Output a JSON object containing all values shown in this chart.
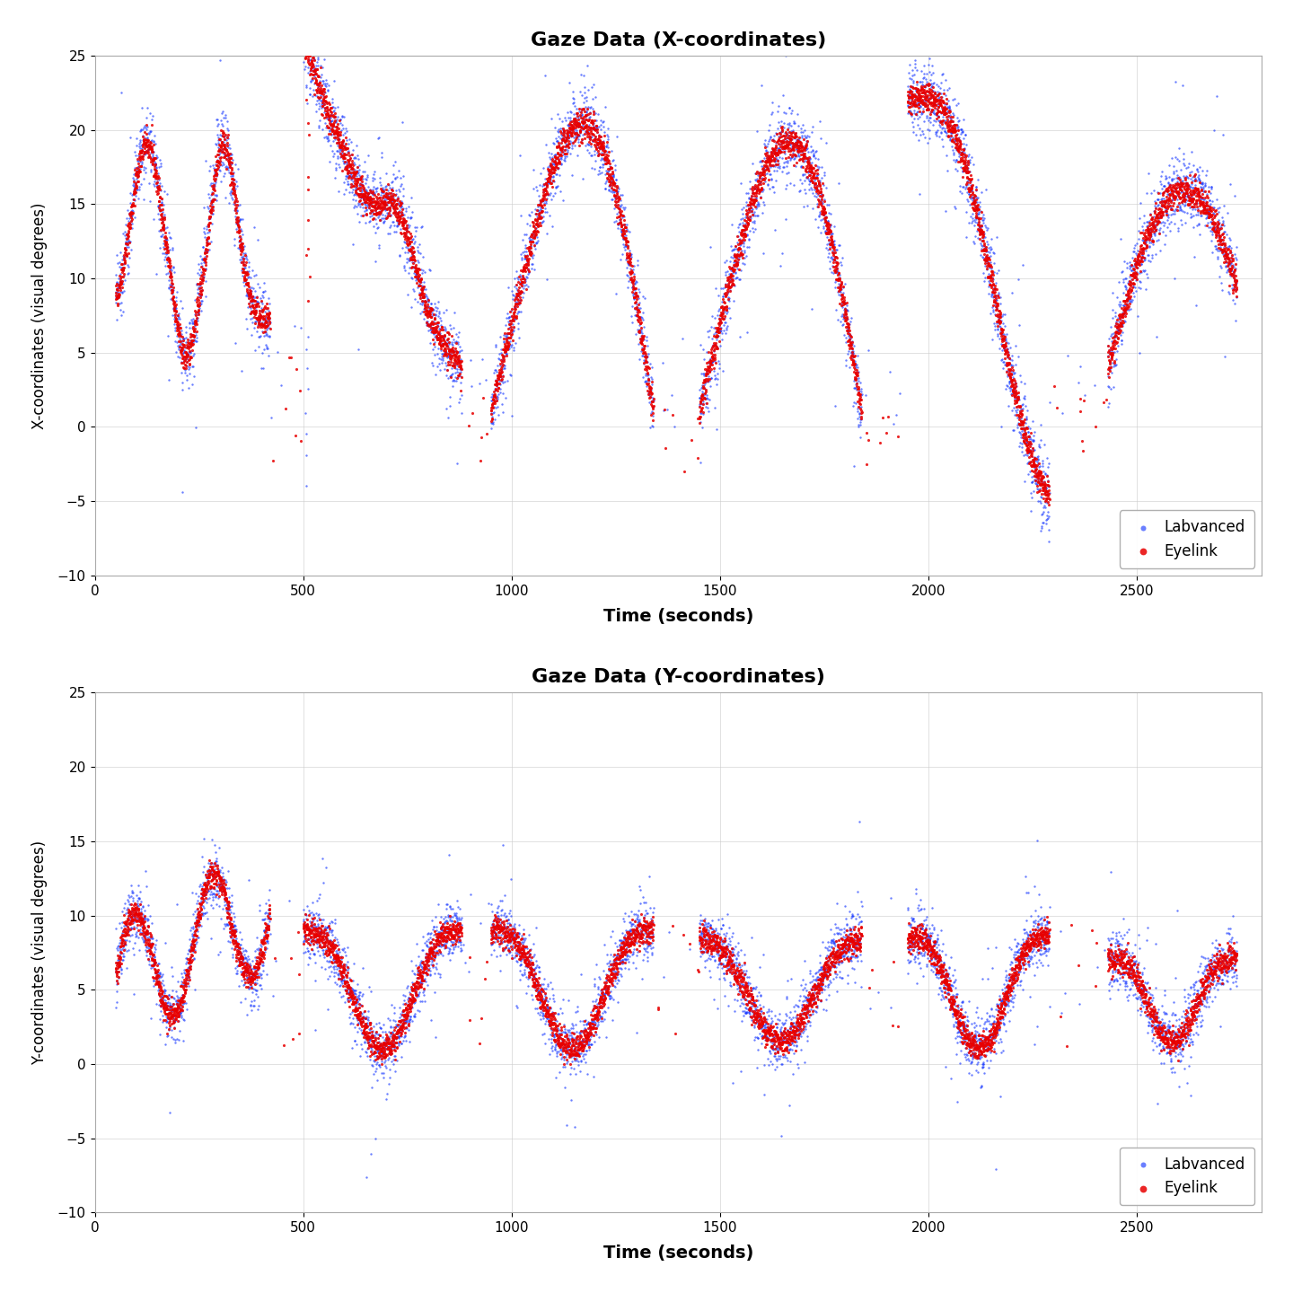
{
  "title_x": "Gaze Data (X-coordinates)",
  "title_y": "Gaze Data (Y-coordinates)",
  "xlabel": "Time (seconds)",
  "ylabel_x": "X-coordinates (visual degrees)",
  "ylabel_y": "Y-coordinates (visual degrees)",
  "ylim": [
    -10,
    25
  ],
  "xlim": [
    0,
    2800
  ],
  "xticks": [
    0,
    500,
    1000,
    1500,
    2000,
    2500
  ],
  "yticks": [
    -10,
    -5,
    0,
    5,
    10,
    15,
    20,
    25
  ],
  "blue_color": "#1a3aff",
  "red_color": "#e80000",
  "dot_size_blue": 3,
  "dot_size_red": 5,
  "alpha_blue": 0.65,
  "alpha_red": 0.85,
  "legend_blue": "Labvanced",
  "legend_red": "Eyelink",
  "background_color": "#ffffff",
  "seed": 42
}
